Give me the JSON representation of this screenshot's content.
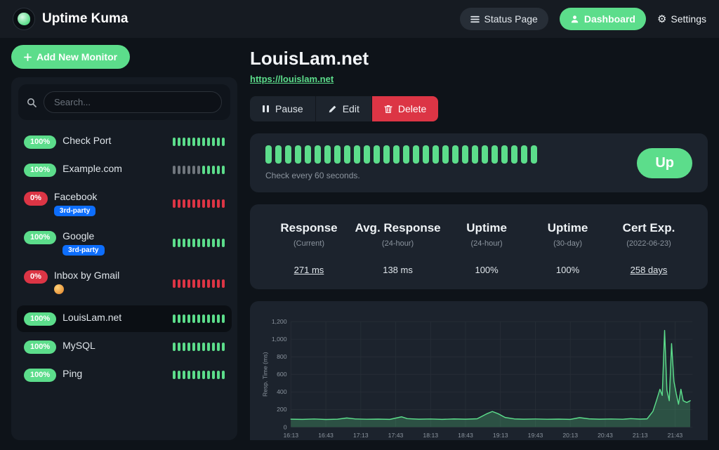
{
  "header": {
    "app_title": "Uptime Kuma",
    "status_page_label": "Status Page",
    "dashboard_label": "Dashboard",
    "settings_label": "Settings"
  },
  "sidebar": {
    "add_monitor_label": "Add New Monitor",
    "search_placeholder": "Search...",
    "monitors": [
      {
        "name": "Check Port",
        "uptime": "100%",
        "status": "up",
        "active": false,
        "badges": [],
        "beats": [
          "up",
          "up",
          "up",
          "up",
          "up",
          "up",
          "up",
          "up",
          "up",
          "up",
          "up"
        ]
      },
      {
        "name": "Example.com",
        "uptime": "100%",
        "status": "up",
        "active": false,
        "badges": [],
        "beats": [
          "empty",
          "empty",
          "empty",
          "empty",
          "empty",
          "empty",
          "up",
          "up",
          "up",
          "up",
          "up"
        ]
      },
      {
        "name": "Facebook",
        "uptime": "0%",
        "status": "down",
        "active": false,
        "badges": [
          {
            "type": "pill",
            "label": "3rd-party"
          }
        ],
        "beats": [
          "down",
          "down",
          "down",
          "down",
          "down",
          "down",
          "down",
          "down",
          "down",
          "down",
          "down"
        ]
      },
      {
        "name": "Google",
        "uptime": "100%",
        "status": "up",
        "active": false,
        "badges": [
          {
            "type": "pill",
            "label": "3rd-party"
          }
        ],
        "beats": [
          "up",
          "up",
          "up",
          "up",
          "up",
          "up",
          "up",
          "up",
          "up",
          "up",
          "up"
        ]
      },
      {
        "name": "Inbox by Gmail",
        "uptime": "0%",
        "status": "down",
        "active": false,
        "badges": [
          {
            "type": "emoji",
            "label": "monkey-emoji"
          }
        ],
        "beats": [
          "down",
          "down",
          "down",
          "down",
          "down",
          "down",
          "down",
          "down",
          "down",
          "down",
          "down"
        ]
      },
      {
        "name": "LouisLam.net",
        "uptime": "100%",
        "status": "up",
        "active": true,
        "badges": [],
        "beats": [
          "up",
          "up",
          "up",
          "up",
          "up",
          "up",
          "up",
          "up",
          "up",
          "up",
          "up"
        ]
      },
      {
        "name": "MySQL",
        "uptime": "100%",
        "status": "up",
        "active": false,
        "badges": [],
        "beats": [
          "up",
          "up",
          "up",
          "up",
          "up",
          "up",
          "up",
          "up",
          "up",
          "up",
          "up"
        ]
      },
      {
        "name": "Ping",
        "uptime": "100%",
        "status": "up",
        "active": false,
        "badges": [],
        "beats": [
          "up",
          "up",
          "up",
          "up",
          "up",
          "up",
          "up",
          "up",
          "up",
          "up",
          "up"
        ]
      }
    ]
  },
  "main": {
    "title": "LouisLam.net",
    "url": "https://louislam.net",
    "actions": {
      "pause": "Pause",
      "edit": "Edit",
      "delete": "Delete"
    },
    "heartbeat": {
      "beats_count": 28,
      "caption": "Check every 60 seconds.",
      "status_label": "Up"
    },
    "stats": [
      {
        "title": "Response",
        "sub": "(Current)",
        "value": "271 ms",
        "underline": true
      },
      {
        "title": "Avg. Response",
        "sub": "(24-hour)",
        "value": "138 ms",
        "underline": false
      },
      {
        "title": "Uptime",
        "sub": "(24-hour)",
        "value": "100%",
        "underline": false
      },
      {
        "title": "Uptime",
        "sub": "(30-day)",
        "value": "100%",
        "underline": false
      },
      {
        "title": "Cert Exp.",
        "sub": "(2022-06-23)",
        "value": "258 days",
        "underline": true
      }
    ]
  },
  "chart_data": {
    "type": "area",
    "title": "",
    "xlabel": "",
    "ylabel": "Resp. Time (ms)",
    "ylim": [
      0,
      1200
    ],
    "x_max_minutes": 345,
    "y_ticks": [
      0,
      200,
      400,
      600,
      800,
      1000,
      1200
    ],
    "y_tick_labels": [
      "0",
      "200",
      "400",
      "600",
      "800",
      "1,000",
      "1,200"
    ],
    "x_tick_minutes": [
      0,
      30,
      60,
      90,
      120,
      150,
      180,
      210,
      240,
      270,
      300,
      330
    ],
    "x_tick_labels": [
      "16:13",
      "16:43",
      "17:13",
      "17:43",
      "18:13",
      "18:43",
      "19:13",
      "19:43",
      "20:13",
      "20:43",
      "21:13",
      "21:43"
    ],
    "grid": true,
    "legend": "none",
    "line_color": "#5cdd8b",
    "fill_color": "rgba(92,221,139,0.25)",
    "points": [
      [
        0,
        90
      ],
      [
        10,
        88
      ],
      [
        20,
        92
      ],
      [
        30,
        87
      ],
      [
        40,
        90
      ],
      [
        48,
        104
      ],
      [
        55,
        93
      ],
      [
        65,
        89
      ],
      [
        75,
        91
      ],
      [
        85,
        88
      ],
      [
        95,
        117
      ],
      [
        100,
        96
      ],
      [
        110,
        90
      ],
      [
        120,
        92
      ],
      [
        130,
        88
      ],
      [
        140,
        93
      ],
      [
        150,
        90
      ],
      [
        160,
        95
      ],
      [
        168,
        150
      ],
      [
        173,
        178
      ],
      [
        178,
        152
      ],
      [
        184,
        110
      ],
      [
        192,
        93
      ],
      [
        200,
        90
      ],
      [
        210,
        92
      ],
      [
        220,
        89
      ],
      [
        230,
        91
      ],
      [
        240,
        88
      ],
      [
        248,
        108
      ],
      [
        256,
        94
      ],
      [
        265,
        90
      ],
      [
        275,
        92
      ],
      [
        285,
        89
      ],
      [
        292,
        96
      ],
      [
        300,
        91
      ],
      [
        306,
        94
      ],
      [
        311,
        180
      ],
      [
        314,
        300
      ],
      [
        317,
        430
      ],
      [
        319,
        360
      ],
      [
        321,
        1100
      ],
      [
        323,
        420
      ],
      [
        325,
        300
      ],
      [
        327,
        950
      ],
      [
        329,
        520
      ],
      [
        331,
        380
      ],
      [
        333,
        260
      ],
      [
        335,
        430
      ],
      [
        337,
        300
      ],
      [
        340,
        280
      ],
      [
        343,
        300
      ]
    ]
  },
  "colors": {
    "green": "#5cdd8b",
    "red": "#dc3545",
    "blue": "#0d6efd"
  }
}
